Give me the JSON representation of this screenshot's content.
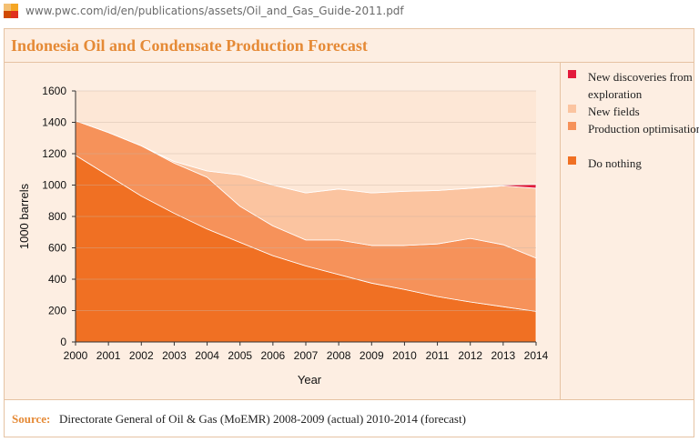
{
  "browser": {
    "url": "www.pwc.com/id/en/publications/assets/Oil_and_Gas_Guide-2011.pdf",
    "logo_icon": "pwc-logo-icon"
  },
  "source": {
    "label": "Source:",
    "text": "Directorate General of Oil & Gas (MoEMR) 2008-2009 (actual) 2010-2014 (forecast)"
  },
  "chart_data": {
    "type": "area",
    "stacked": true,
    "title": "Indonesia Oil and Condensate Production Forecast",
    "xlabel": "Year",
    "ylabel": "1000 barrels",
    "x": [
      "2000",
      "2001",
      "2002",
      "2003",
      "2004",
      "2005",
      "2006",
      "2007",
      "2008",
      "2009",
      "2010",
      "2011",
      "2012",
      "2013",
      "2014"
    ],
    "yticks": [
      0,
      200,
      400,
      600,
      800,
      1000,
      1200,
      1400,
      1600
    ],
    "ylim": [
      0,
      1600
    ],
    "grid": "horizontal",
    "legend_position": "right",
    "series": [
      {
        "name": "Do nothing",
        "color": "#f07023",
        "values": [
          1190,
          1060,
          930,
          820,
          720,
          635,
          550,
          485,
          430,
          375,
          335,
          290,
          255,
          225,
          195
        ]
      },
      {
        "name": "Production optimisation",
        "color": "#f6925a",
        "values": [
          220,
          275,
          320,
          320,
          330,
          230,
          190,
          165,
          220,
          240,
          280,
          335,
          405,
          395,
          340
        ]
      },
      {
        "name": "New fields",
        "color": "#fbc4a0",
        "values": [
          0,
          0,
          0,
          10,
          40,
          200,
          260,
          300,
          325,
          335,
          345,
          340,
          320,
          375,
          445
        ]
      },
      {
        "name": "New discoveries from exploration",
        "color": "#e31a3b",
        "values": [
          0,
          0,
          0,
          0,
          0,
          0,
          0,
          0,
          0,
          0,
          0,
          0,
          0,
          5,
          25
        ]
      }
    ]
  }
}
